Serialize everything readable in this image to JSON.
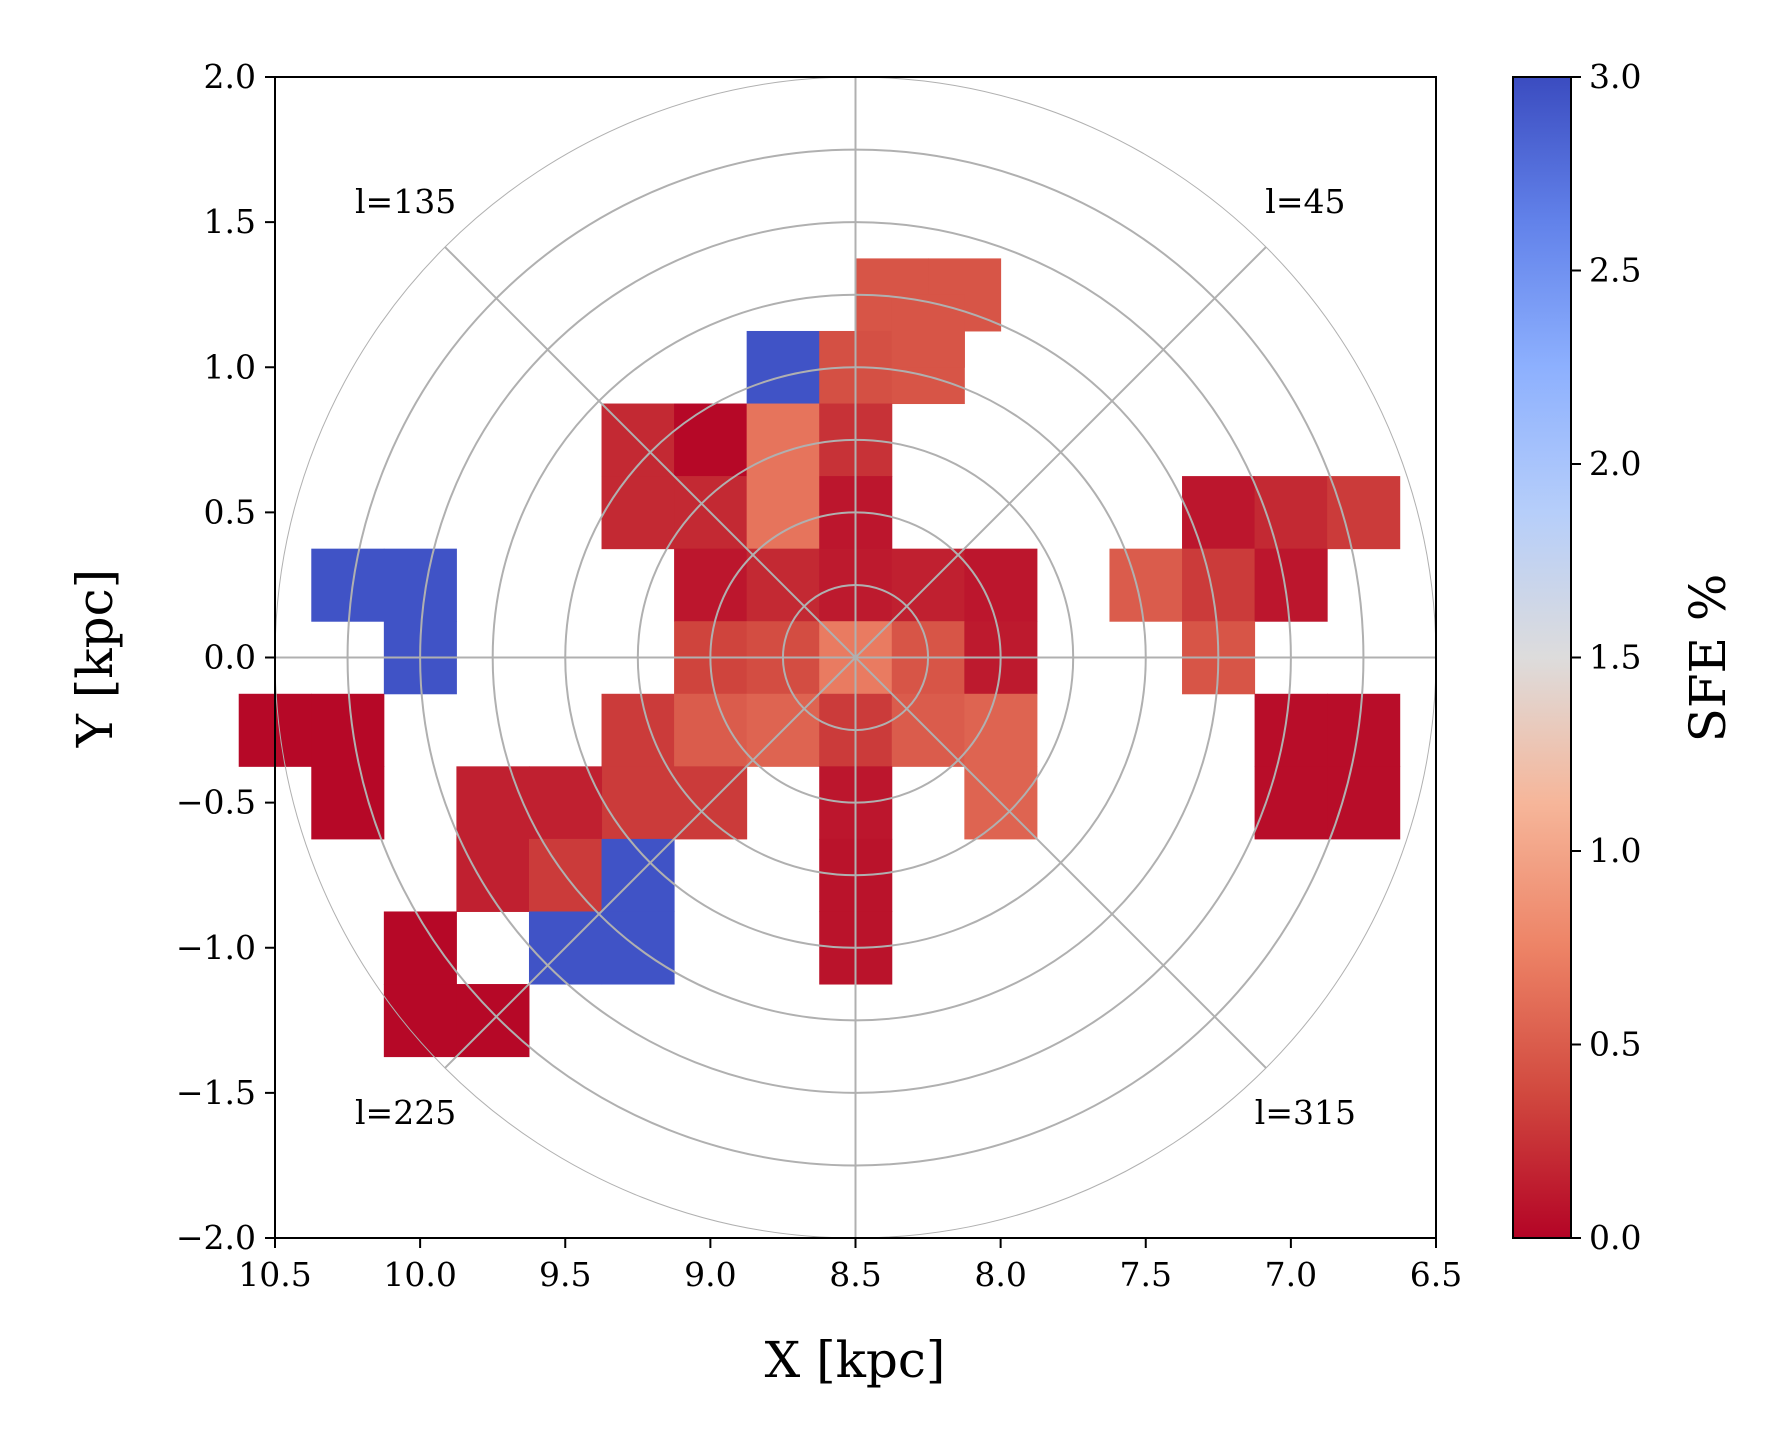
{
  "chart_data": {
    "type": "heatmap",
    "xlabel": "X [kpc]",
    "ylabel": "Y [kpc]",
    "xlim": [
      10.5,
      6.5
    ],
    "ylim": [
      -2.0,
      2.0
    ],
    "xticks": [
      "10.5",
      "10.0",
      "9.5",
      "9.0",
      "8.5",
      "8.0",
      "7.5",
      "7.0",
      "6.5"
    ],
    "yticks": [
      "2.0",
      "1.5",
      "1.0",
      "0.5",
      "0.0",
      "−0.5",
      "−1.0",
      "−1.5",
      "−2.0"
    ],
    "xtick_values": [
      10.5,
      10.0,
      9.5,
      9.0,
      8.5,
      8.0,
      7.5,
      7.0,
      6.5
    ],
    "ytick_values": [
      2.0,
      1.5,
      1.0,
      0.5,
      0.0,
      -0.5,
      -1.0,
      -1.5,
      -2.0
    ],
    "bin_size_kpc": 0.25,
    "colorbar": {
      "label": "SFE %",
      "range": [
        0.0,
        3.0
      ],
      "colormap": "coolwarm_r",
      "ticks": [
        "0.0",
        "0.5",
        "1.0",
        "1.5",
        "2.0",
        "2.5",
        "3.0"
      ],
      "tick_values": [
        0.0,
        0.5,
        1.0,
        1.5,
        2.0,
        2.5,
        3.0
      ]
    },
    "polar_grid": {
      "center": [
        8.5,
        0.0
      ],
      "rings_kpc": [
        0.25,
        0.5,
        0.75,
        1.0,
        1.25,
        1.5,
        1.75,
        2.0
      ],
      "spoke_angles_deg": [
        0,
        45,
        90,
        135,
        180,
        225,
        270,
        315
      ]
    },
    "sector_labels": [
      {
        "text": "l=135",
        "x": 10.05,
        "y": 1.57
      },
      {
        "text": "l=45",
        "x": 6.95,
        "y": 1.57
      },
      {
        "text": "l=225",
        "x": 10.05,
        "y": -1.57
      },
      {
        "text": "l=315",
        "x": 6.95,
        "y": -1.57
      }
    ],
    "cells": [
      {
        "x": 8.375,
        "y": 1.25,
        "sfe": 0.45
      },
      {
        "x": 8.125,
        "y": 1.25,
        "sfe": 0.45
      },
      {
        "x": 8.75,
        "y": 1.0,
        "sfe": 2.95
      },
      {
        "x": 8.5,
        "y": 1.0,
        "sfe": 0.42
      },
      {
        "x": 8.25,
        "y": 1.0,
        "sfe": 0.45
      },
      {
        "x": 8.25,
        "y": 1.125,
        "sfe": 0.45
      },
      {
        "x": 9.25,
        "y": 0.75,
        "sfe": 0.2
      },
      {
        "x": 9.0,
        "y": 0.75,
        "sfe": 0.02
      },
      {
        "x": 8.75,
        "y": 0.75,
        "sfe": 0.65
      },
      {
        "x": 8.5,
        "y": 0.75,
        "sfe": 0.25
      },
      {
        "x": 9.25,
        "y": 0.5,
        "sfe": 0.2
      },
      {
        "x": 9.0,
        "y": 0.5,
        "sfe": 0.2
      },
      {
        "x": 8.75,
        "y": 0.5,
        "sfe": 0.65
      },
      {
        "x": 8.5,
        "y": 0.5,
        "sfe": 0.1
      },
      {
        "x": 9.0,
        "y": 0.25,
        "sfe": 0.1
      },
      {
        "x": 8.75,
        "y": 0.25,
        "sfe": 0.2
      },
      {
        "x": 8.5,
        "y": 0.25,
        "sfe": 0.12
      },
      {
        "x": 8.25,
        "y": 0.25,
        "sfe": 0.15
      },
      {
        "x": 8.0,
        "y": 0.25,
        "sfe": 0.1
      },
      {
        "x": 9.0,
        "y": 0.0,
        "sfe": 0.35
      },
      {
        "x": 8.75,
        "y": 0.0,
        "sfe": 0.4
      },
      {
        "x": 8.5,
        "y": 0.0,
        "sfe": 0.7
      },
      {
        "x": 8.25,
        "y": 0.0,
        "sfe": 0.45
      },
      {
        "x": 8.0,
        "y": 0.0,
        "sfe": 0.12
      },
      {
        "x": 9.25,
        "y": -0.25,
        "sfe": 0.3
      },
      {
        "x": 9.0,
        "y": -0.25,
        "sfe": 0.5
      },
      {
        "x": 8.75,
        "y": -0.25,
        "sfe": 0.55
      },
      {
        "x": 8.5,
        "y": -0.25,
        "sfe": 0.3
      },
      {
        "x": 8.25,
        "y": -0.25,
        "sfe": 0.5
      },
      {
        "x": 8.0,
        "y": -0.25,
        "sfe": 0.55
      },
      {
        "x": 9.25,
        "y": -0.5,
        "sfe": 0.3
      },
      {
        "x": 9.0,
        "y": -0.5,
        "sfe": 0.3
      },
      {
        "x": 8.5,
        "y": -0.5,
        "sfe": 0.1
      },
      {
        "x": 8.0,
        "y": -0.5,
        "sfe": 0.55
      },
      {
        "x": 8.5,
        "y": -0.75,
        "sfe": 0.08
      },
      {
        "x": 8.5,
        "y": -1.0,
        "sfe": 0.08
      },
      {
        "x": 10.25,
        "y": 0.25,
        "sfe": 2.95
      },
      {
        "x": 10.0,
        "y": 0.25,
        "sfe": 2.95
      },
      {
        "x": 10.0,
        "y": 0.0,
        "sfe": 2.95
      },
      {
        "x": 10.5,
        "y": -0.25,
        "sfe": 0.02
      },
      {
        "x": 10.25,
        "y": -0.25,
        "sfe": 0.02
      },
      {
        "x": 10.25,
        "y": -0.5,
        "sfe": 0.02
      },
      {
        "x": 9.75,
        "y": -0.5,
        "sfe": 0.15
      },
      {
        "x": 9.5,
        "y": -0.5,
        "sfe": 0.15
      },
      {
        "x": 9.75,
        "y": -0.75,
        "sfe": 0.15
      },
      {
        "x": 9.5,
        "y": -0.75,
        "sfe": 0.3
      },
      {
        "x": 9.25,
        "y": -0.75,
        "sfe": 2.95
      },
      {
        "x": 10.0,
        "y": -1.0,
        "sfe": 0.02
      },
      {
        "x": 9.5,
        "y": -1.0,
        "sfe": 2.95
      },
      {
        "x": 9.25,
        "y": -1.0,
        "sfe": 2.95
      },
      {
        "x": 10.0,
        "y": -1.25,
        "sfe": 0.02
      },
      {
        "x": 9.75,
        "y": -1.25,
        "sfe": 0.02
      },
      {
        "x": 7.25,
        "y": 0.5,
        "sfe": 0.1
      },
      {
        "x": 7.0,
        "y": 0.5,
        "sfe": 0.2
      },
      {
        "x": 6.75,
        "y": 0.5,
        "sfe": 0.3
      },
      {
        "x": 7.5,
        "y": 0.25,
        "sfe": 0.5
      },
      {
        "x": 7.25,
        "y": 0.25,
        "sfe": 0.3
      },
      {
        "x": 7.0,
        "y": 0.25,
        "sfe": 0.1
      },
      {
        "x": 7.25,
        "y": 0.0,
        "sfe": 0.45
      },
      {
        "x": 7.0,
        "y": -0.25,
        "sfe": 0.05
      },
      {
        "x": 6.75,
        "y": -0.25,
        "sfe": 0.05
      },
      {
        "x": 7.0,
        "y": -0.5,
        "sfe": 0.05
      },
      {
        "x": 6.75,
        "y": -0.5,
        "sfe": 0.05
      }
    ]
  }
}
